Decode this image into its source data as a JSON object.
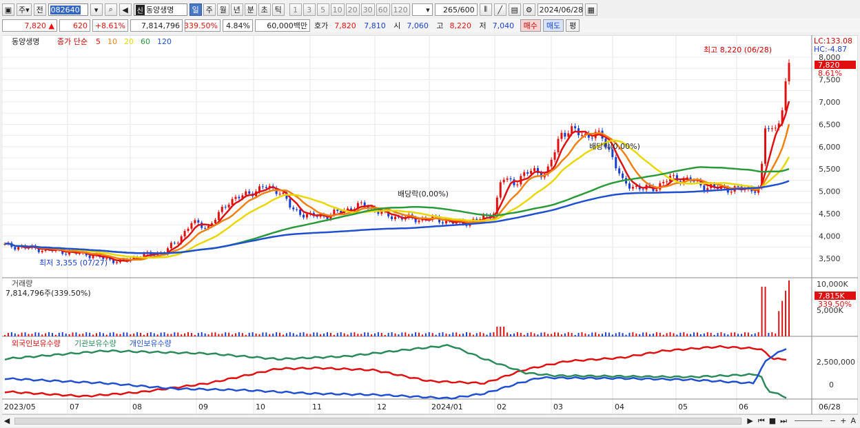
{
  "toolbar": {
    "type_label": "주",
    "prev_label": "전",
    "stock_code": "082640",
    "name_tag": "신",
    "stock_name": "동양생명",
    "periods": [
      "일",
      "주",
      "월",
      "년",
      "분",
      "초",
      "틱"
    ],
    "active_period": "일",
    "intervals": [
      "1",
      "3",
      "5",
      "10",
      "20",
      "30",
      "60",
      "120"
    ],
    "count": "265",
    "count_total": "/600",
    "date": "2024/06/28"
  },
  "quote": {
    "price": "7,820",
    "arrow": "▲",
    "change": "620",
    "change_pct": "+8.61%",
    "volume": "7,814,796",
    "vol_ratio": "339.50%",
    "turnover": "4.84%",
    "amount": "60,000백만",
    "hoga_label": "호가",
    "ask": "7,820",
    "bid": "7,810",
    "open_label": "시",
    "open": "7,060",
    "high_label": "고",
    "high": "8,220",
    "low_label": "저",
    "low": "7,040",
    "buy_label": "매수",
    "sell_label": "매도",
    "avg_label": "평"
  },
  "price_panel": {
    "stock_label": "동양생명",
    "legend_prefix": "종가 단순",
    "ma": [
      {
        "period": "5",
        "color": "#e01010"
      },
      {
        "period": "10",
        "color": "#f08010"
      },
      {
        "period": "20",
        "color": "#e8d800"
      },
      {
        "period": "60",
        "color": "#2a9a3a"
      },
      {
        "period": "120",
        "color": "#2050d0"
      }
    ],
    "max_note": "최고 8,220 (06/28)",
    "min_note": "최저 3,355 (07/27)",
    "dividend_notes": [
      "배당락(0,00%)",
      "배당락(0,00%)"
    ],
    "lc": "LC:133.08",
    "hc": "HC:-4.87",
    "last_price": "7,820",
    "last_pct": "8.61%",
    "axis": [
      "8,000",
      "7,500",
      "7,000",
      "6,500",
      "6,000",
      "5,500",
      "5,000",
      "4,500",
      "4,000",
      "3,500"
    ]
  },
  "volume_panel": {
    "title": "거래량",
    "value": "7,814,796주(339.50%)",
    "axis": [
      "10,000K",
      "5,000K"
    ],
    "last_value": "7,815K",
    "last_pct": "339.50%"
  },
  "holdings_panel": {
    "series": [
      {
        "name": "외국인보유수량",
        "color": "#e01010"
      },
      {
        "name": "기관보유수량",
        "color": "#2a8a5a"
      },
      {
        "name": "개인보유수량",
        "color": "#2050d0"
      }
    ],
    "axis": [
      "2,500,000",
      "0"
    ]
  },
  "x_axis": [
    "2023/05",
    "07",
    "08",
    "09",
    "10",
    "11",
    "12",
    "2024/01",
    "02",
    "03",
    "04",
    "05",
    "06",
    "06/28"
  ],
  "colors": {
    "up": "#e01010",
    "down": "#1a3fcf",
    "grid": "#e6e6e6"
  }
}
